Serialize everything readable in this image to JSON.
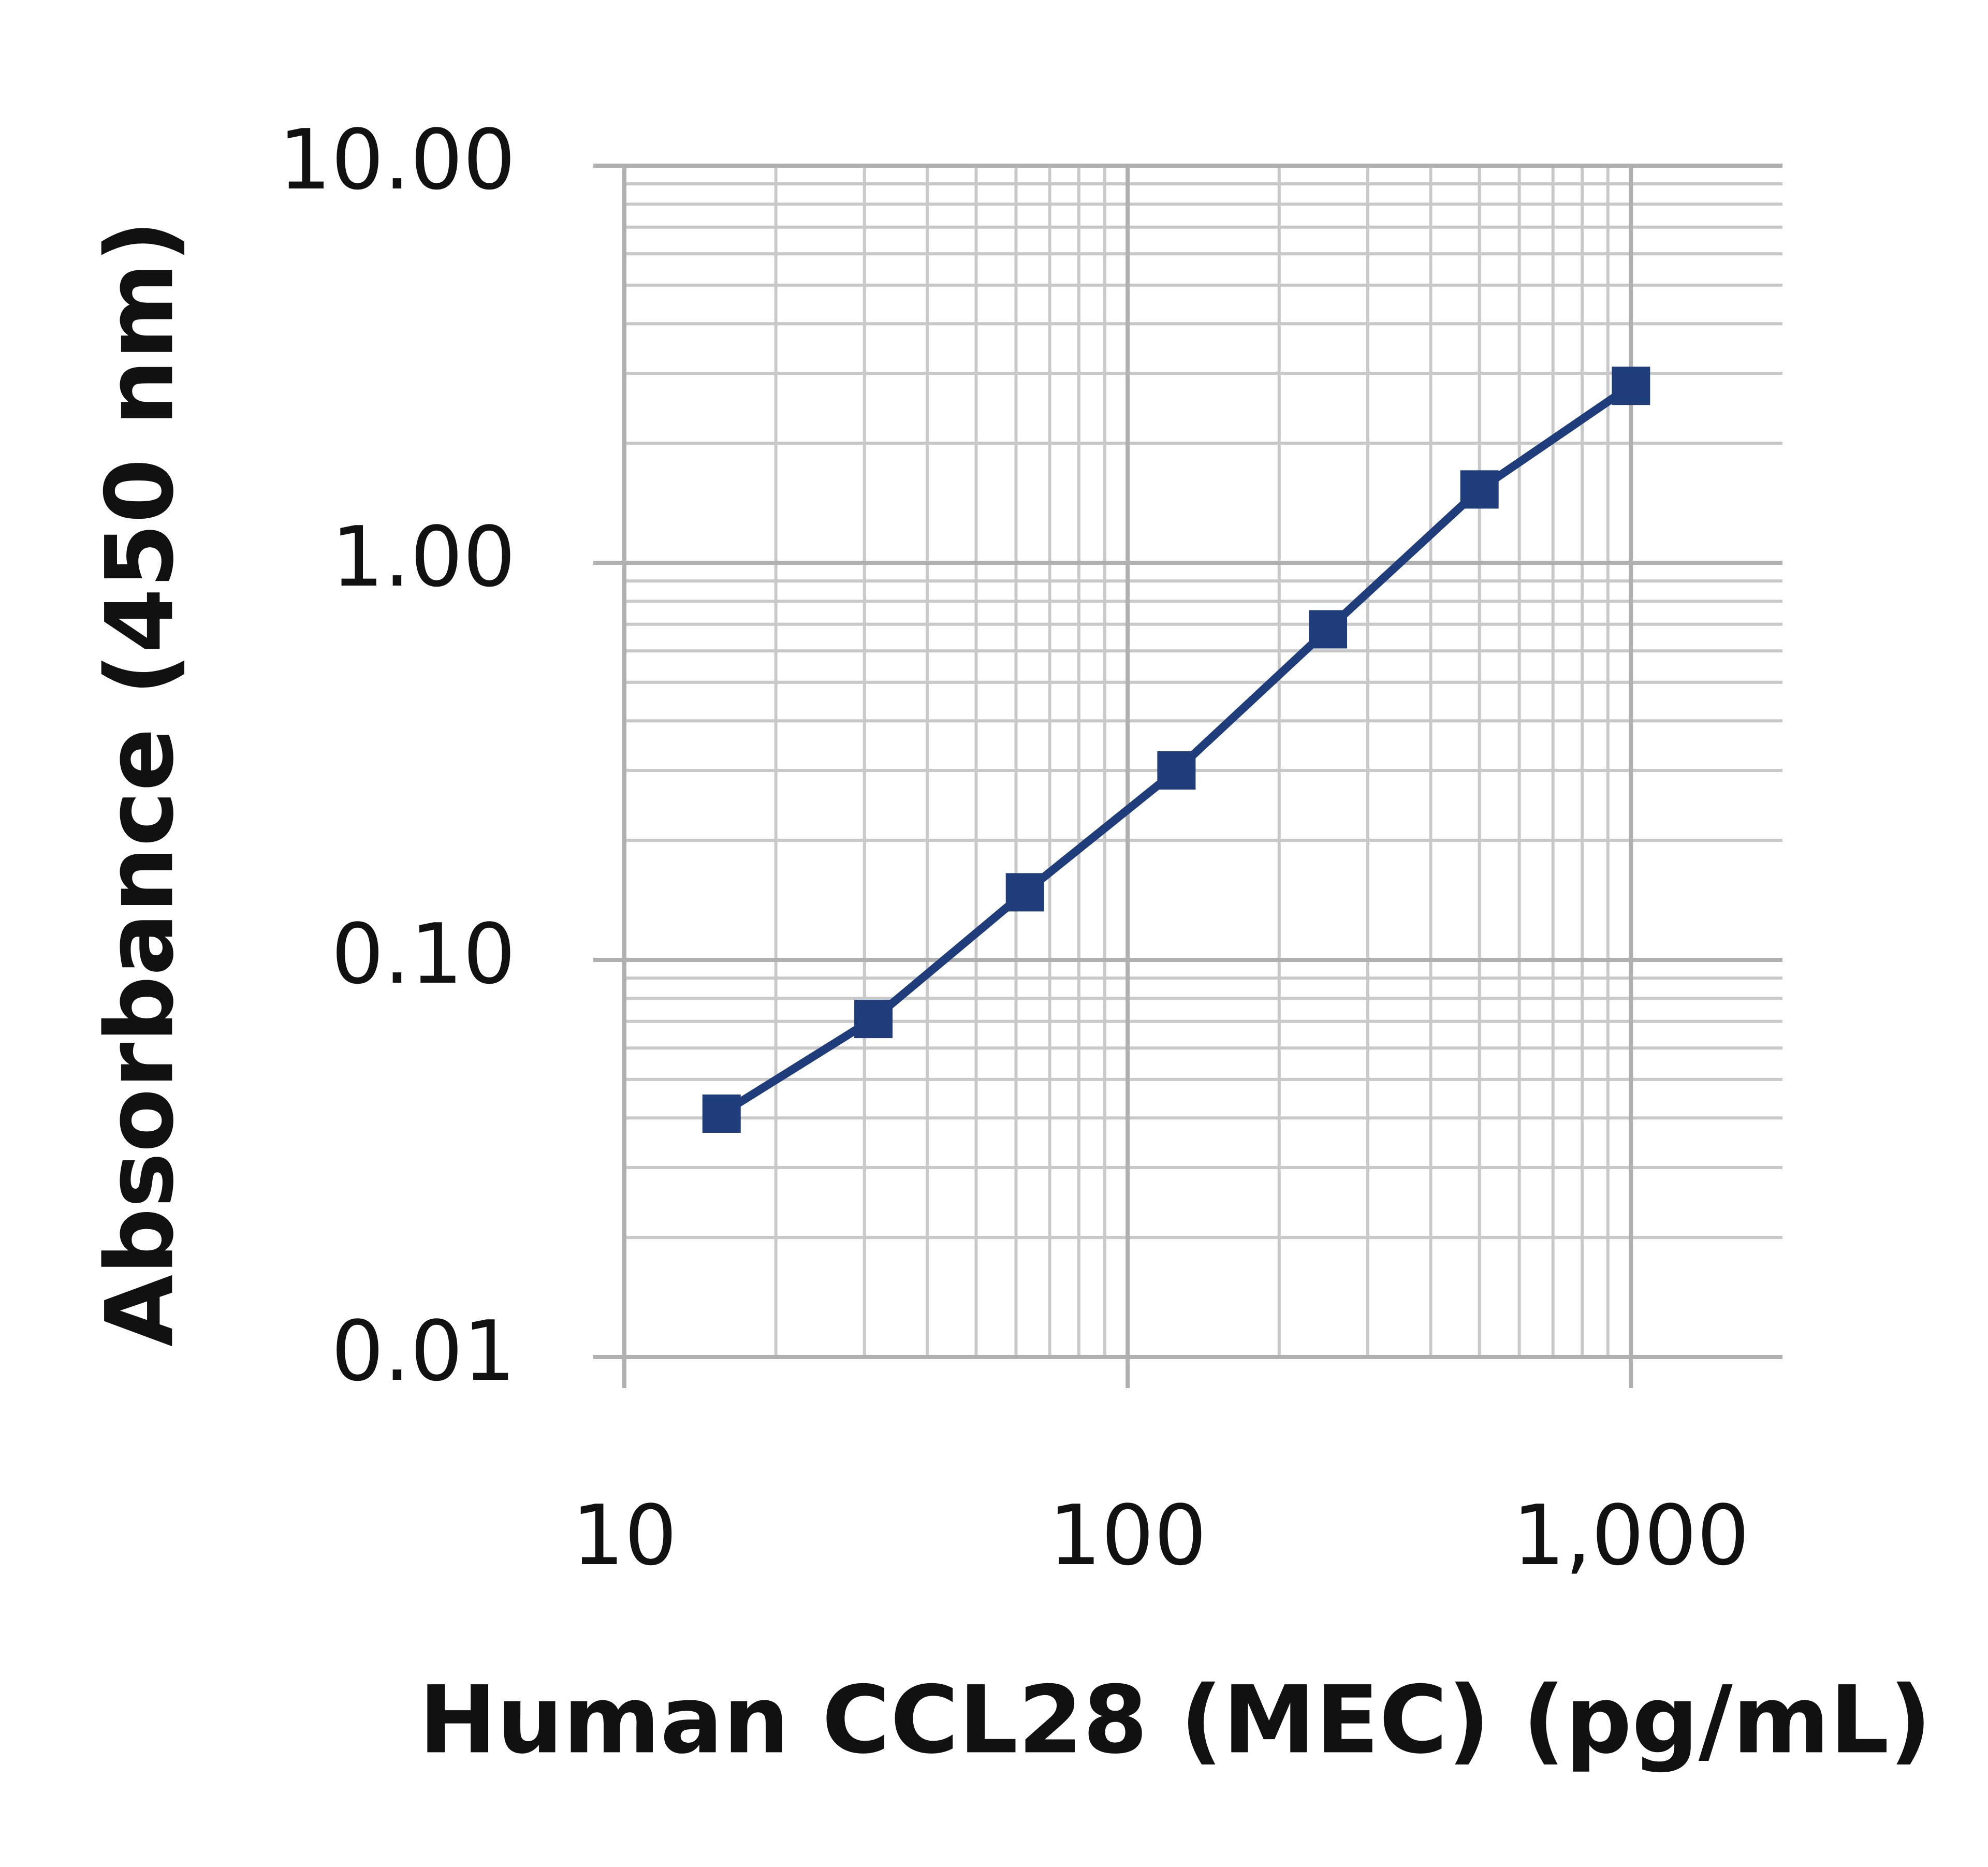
{
  "chart_data": {
    "type": "line",
    "x_label": "Human CCL28 (MEC) (pg/mL)",
    "y_label": "Absorbance (450 nm)",
    "x": [
      15.6,
      31.25,
      62.5,
      125,
      250,
      500,
      1000
    ],
    "series": [
      {
        "color": "#1f3d7a",
        "values": [
          0.041,
          0.071,
          0.148,
          0.3,
          0.68,
          1.53,
          2.79
        ]
      }
    ],
    "xlim": [
      10,
      2000
    ],
    "ylim": [
      0.01,
      10
    ],
    "xticks": [
      10,
      100,
      {
        "value": 1000,
        "label": "1,000"
      }
    ],
    "yticks": [
      {
        "value": 0.01,
        "label": "0.01"
      },
      {
        "value": 0.1,
        "label": "0.10"
      },
      {
        "value": 1,
        "label": "1.00"
      },
      {
        "value": 10,
        "label": "10.00"
      }
    ],
    "xscale": "log",
    "yscale": "log",
    "grid": true,
    "minor_grid": true
  }
}
